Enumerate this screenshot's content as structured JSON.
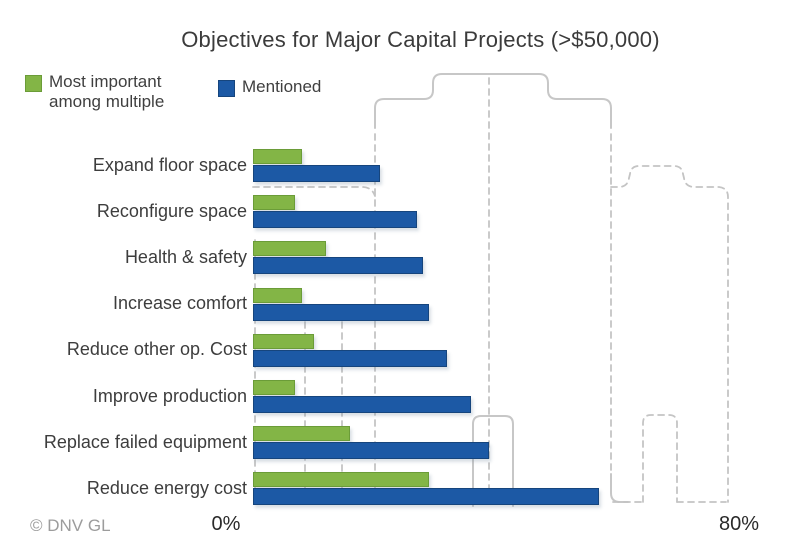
{
  "title": "Objectives for Major Capital Projects (>$50,000)",
  "watermark": "© DNV GL",
  "legend": {
    "items": [
      {
        "lines": [
          "Most important",
          "among multiple"
        ],
        "color": "#83b546",
        "border": "#6b9c38"
      },
      {
        "lines": [
          "Mentioned"
        ],
        "color": "#1c59a5",
        "border": "#16457d"
      }
    ]
  },
  "axis": {
    "left_label": "0%",
    "right_label": "80%"
  },
  "colors": {
    "green_fill": "#83b546",
    "green_border": "#6b9c38",
    "blue_fill": "#1c59a5",
    "blue_border": "#16457d",
    "silhouette_gray": "#c7c7c7",
    "text_dark": "#3d3d3d",
    "watermark_gray": "#9c9c9c"
  },
  "chart_data": {
    "type": "bar",
    "orientation": "horizontal",
    "title": "Objectives for Major Capital Projects (>$50,000)",
    "categories": [
      "Expand floor space",
      "Reconfigure space",
      "Health & safety",
      "Increase comfort",
      "Reduce other op. Cost",
      "Improve production",
      "Replace failed equipment",
      "Reduce energy cost"
    ],
    "series": [
      {
        "name": "Most important among multiple",
        "color": "#83b546",
        "border": "#6b9c38",
        "values": [
          8,
          7,
          12,
          8,
          10,
          7,
          16,
          29
        ]
      },
      {
        "name": "Mentioned",
        "color": "#1c59a5",
        "border": "#16457d",
        "values": [
          21,
          27,
          28,
          29,
          32,
          36,
          39,
          57
        ]
      }
    ],
    "xlabel": "",
    "ylabel": "",
    "xlim": [
      0,
      80
    ],
    "x_tick_labels": [
      "0%",
      "80%"
    ],
    "unit": "percent",
    "legend_position": "top-left",
    "grid": false,
    "background_decoration": "light gray building skyline outline (solid and dashed)"
  }
}
